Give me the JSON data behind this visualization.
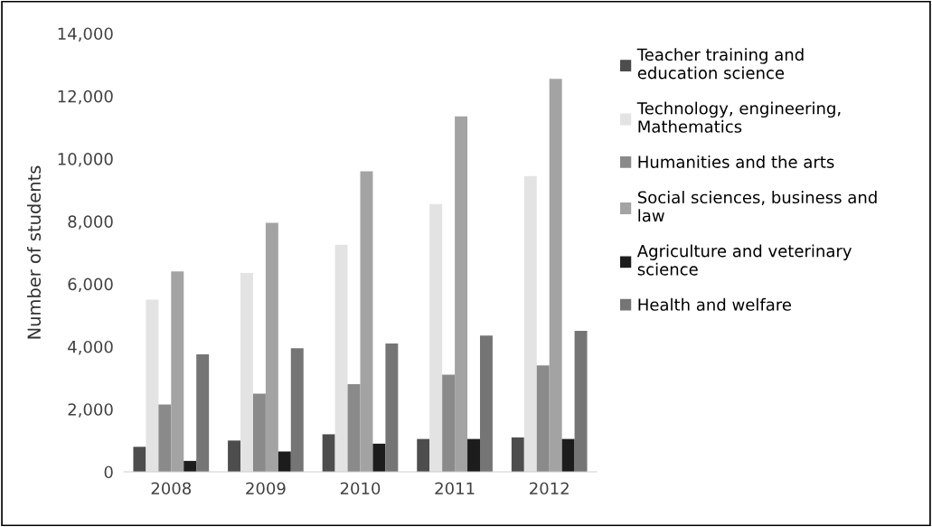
{
  "chart_data": {
    "type": "bar",
    "ylabel": "Number of students",
    "categories": [
      "2008",
      "2009",
      "2010",
      "2011",
      "2012"
    ],
    "series": [
      {
        "name": "Teacher training and education science",
        "color": "#4d4d4d",
        "values": [
          800,
          1000,
          1200,
          1050,
          1100
        ]
      },
      {
        "name": "Technology, engineering, Mathematics",
        "color": "#e3e3e3",
        "values": [
          5500,
          6350,
          7250,
          8550,
          9450
        ]
      },
      {
        "name": "Humanities and the arts",
        "color": "#8a8a8a",
        "values": [
          2150,
          2500,
          2800,
          3100,
          3400
        ]
      },
      {
        "name": "Social sciences, business and law",
        "color": "#a3a3a3",
        "values": [
          6400,
          7950,
          9600,
          11350,
          12550
        ]
      },
      {
        "name": "Agriculture and veterinary science",
        "color": "#1c1c1c",
        "values": [
          350,
          650,
          900,
          1050,
          1050
        ]
      },
      {
        "name": "Health and welfare",
        "color": "#757575",
        "values": [
          3750,
          3950,
          4100,
          4350,
          4500
        ]
      }
    ],
    "ylim": [
      0,
      14000
    ],
    "yticks": [
      {
        "value": 0,
        "label": "0"
      },
      {
        "value": 2000,
        "label": "2,000"
      },
      {
        "value": 4000,
        "label": "4,000"
      },
      {
        "value": 6000,
        "label": "6,000"
      },
      {
        "value": 8000,
        "label": "8,000"
      },
      {
        "value": 10000,
        "label": "10,000"
      },
      {
        "value": 12000,
        "label": "12,000"
      },
      {
        "value": 14000,
        "label": "14,000"
      }
    ],
    "grid": false,
    "legend": "right"
  }
}
